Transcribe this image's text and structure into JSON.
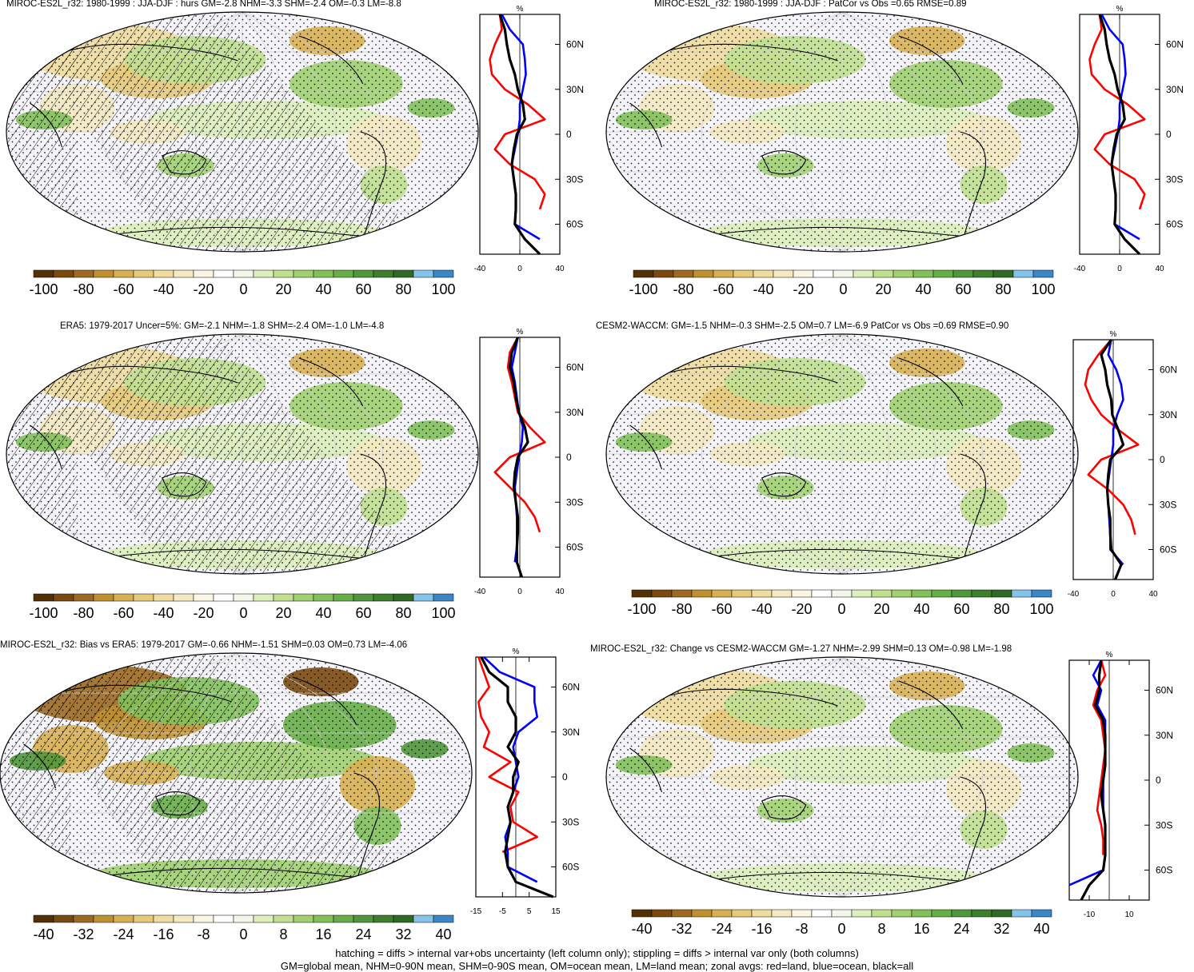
{
  "panels": [
    {
      "title": "MIROC-ES2L_r32: 1980-1999 : JJA-DJF : hurs GM=-2.8 NHM=-3.3 SHM=-2.4 OM=-0.3 LM=-8.8",
      "hatch": true,
      "intense": false,
      "cbar_labels": [
        "-100",
        "-80",
        "-60",
        "-40",
        "-20",
        "0",
        "20",
        "40",
        "60",
        "80",
        "100"
      ],
      "zonal_ticks": [
        "-40",
        "0",
        "40"
      ],
      "lat_labels": [
        "60N",
        "30N",
        "0",
        "30S",
        "60S"
      ]
    },
    {
      "title": "MIROC-ES2L_r32: 1980-1999 : JJA-DJF : PatCor vs Obs =0.65 RMSE=0.89",
      "hatch": false,
      "intense": false,
      "cbar_labels": [
        "-100",
        "-80",
        "-60",
        "-40",
        "-20",
        "0",
        "20",
        "40",
        "60",
        "80",
        "100"
      ],
      "zonal_ticks": [
        "-40",
        "0",
        "40"
      ],
      "lat_labels": [
        "60N",
        "30N",
        "0",
        "30S",
        "60S"
      ]
    },
    {
      "title": "ERA5: 1979-2017 Uncer=5%: GM=-2.1 NHM=-1.8 SHM=-2.4 OM=-1.0 LM=-4.8",
      "hatch": true,
      "intense": false,
      "cbar_labels": [
        "-100",
        "-80",
        "-60",
        "-40",
        "-20",
        "0",
        "20",
        "40",
        "60",
        "80",
        "100"
      ],
      "zonal_ticks": [
        "-40",
        "0",
        "40"
      ],
      "lat_labels": [
        "60N",
        "30N",
        "0",
        "30S",
        "60S"
      ]
    },
    {
      "title": "CESM2-WACCM: GM=-1.5 NHM=-0.3 SHM=-2.5 OM=0.7 LM=-6.9 PatCor vs Obs =0.69 RMSE=0.90",
      "hatch": false,
      "intense": false,
      "cbar_labels": [
        "-100",
        "-80",
        "-60",
        "-40",
        "-20",
        "0",
        "20",
        "40",
        "60",
        "80",
        "100"
      ],
      "zonal_ticks": [
        "-40",
        "0",
        "40"
      ],
      "lat_labels": [
        "60N",
        "30N",
        "0",
        "30S",
        "60S"
      ]
    },
    {
      "title": "MIROC-ES2L_r32: Bias vs ERA5: 1979-2017 GM=-0.66 NHM=-1.51 SHM=0.03 OM=0.73 LM=-4.06",
      "hatch": true,
      "intense": true,
      "cbar_labels": [
        "-40",
        "-32",
        "-24",
        "-16",
        "-8",
        "0",
        "8",
        "16",
        "24",
        "32",
        "40"
      ],
      "zonal_ticks": [
        "-15",
        "-5",
        "5",
        "15"
      ],
      "lat_labels": [
        "60N",
        "30N",
        "0",
        "30S",
        "60S"
      ]
    },
    {
      "title": "MIROC-ES2L_r32: Change vs CESM2-WACCM GM=-1.27 NHM=-2.99 SHM=0.13 OM=-0.98 LM=-1.98",
      "hatch": false,
      "intense": false,
      "cbar_labels": [
        "-40",
        "-32",
        "-24",
        "-16",
        "-8",
        "0",
        "8",
        "16",
        "24",
        "32",
        "40"
      ],
      "zonal_ticks": [
        "-10",
        "10"
      ],
      "lat_labels": [
        "60N",
        "30N",
        "0",
        "30S",
        "60S"
      ]
    }
  ],
  "zonal_axis_label": "%",
  "colorbar_colors": [
    "#543005",
    "#7a4a10",
    "#9d6a22",
    "#c09030",
    "#d8b052",
    "#e6c979",
    "#efdc9e",
    "#f5e9c2",
    "#fbf6e4",
    "#ffffff",
    "#f2f7e9",
    "#dceebb",
    "#c0e090",
    "#a0d070",
    "#82c05a",
    "#68ae48",
    "#50963a",
    "#3e7f2e",
    "#2f6a26",
    "#84c3ea",
    "#3d86c6"
  ],
  "series_colors": {
    "land": "#ff0000",
    "ocean": "#0000ff",
    "all": "#000000"
  },
  "footer": [
    "hatching = diffs > internal var+obs uncertainty (left column only); stippling = diffs > internal var only (both columns)",
    "GM=global mean, NHM=0-90N mean, SHM=0-90S mean, OM=ocean mean, LM=land mean; zonal avgs: red=land, blue=ocean, black=all"
  ],
  "chart_data": [
    {
      "type": "heatmap",
      "title": "MIROC-ES2L_r32: 1980-1999 : JJA-DJF : hurs GM=-2.8 NHM=-3.3 SHM=-2.4 OM=-0.3 LM=-8.8",
      "colorbar_range": [
        -100,
        100
      ],
      "zonal_x_range": [
        -40,
        40
      ],
      "zonal_lat": [
        80,
        70,
        60,
        50,
        40,
        30,
        20,
        10,
        0,
        -10,
        -20,
        -30,
        -40,
        -50,
        -60,
        -70,
        -80
      ],
      "land": [
        -20,
        -18,
        -25,
        -30,
        -28,
        -15,
        8,
        25,
        -15,
        -25,
        -10,
        15,
        25,
        20,
        null,
        -5,
        null
      ],
      "ocean": [
        -18,
        -10,
        3,
        5,
        6,
        3,
        0,
        0,
        -2,
        -5,
        -8,
        -6,
        -4,
        -4,
        -5,
        20,
        null
      ],
      "all": [
        -20,
        -15,
        -13,
        -10,
        -5,
        -2,
        3,
        5,
        -3,
        -6,
        -8,
        -6,
        -4,
        -4,
        -5,
        5,
        20
      ]
    },
    {
      "type": "heatmap",
      "title": "MIROC-ES2L_r32: 1980-1999 : JJA-DJF : PatCor vs Obs =0.65 RMSE=0.89",
      "colorbar_range": [
        -100,
        100
      ],
      "zonal_x_range": [
        -40,
        40
      ],
      "zonal_lat": [
        80,
        70,
        60,
        50,
        40,
        30,
        20,
        10,
        0,
        -10,
        -20,
        -30,
        -40,
        -50,
        -60,
        -70,
        -80
      ],
      "land": [
        -20,
        -18,
        -25,
        -30,
        -28,
        -15,
        8,
        25,
        -15,
        -25,
        -10,
        15,
        25,
        20,
        null,
        -5,
        null
      ],
      "ocean": [
        -18,
        -10,
        3,
        5,
        6,
        3,
        0,
        0,
        -2,
        -5,
        -8,
        -6,
        -4,
        -4,
        -5,
        20,
        null
      ],
      "all": [
        -20,
        -15,
        -13,
        -10,
        -5,
        -2,
        3,
        5,
        -3,
        -6,
        -8,
        -6,
        -4,
        -4,
        -5,
        5,
        20
      ]
    },
    {
      "type": "heatmap",
      "title": "ERA5: 1979-2017 Uncer=5%: GM=-2.1 NHM=-1.8 SHM=-2.4 OM=-1.0 LM=-4.8",
      "colorbar_range": [
        -100,
        100
      ],
      "zonal_x_range": [
        -40,
        40
      ],
      "zonal_lat": [
        80,
        70,
        60,
        50,
        40,
        30,
        20,
        10,
        0,
        -10,
        -20,
        -30,
        -40,
        -50,
        -60,
        -70,
        -80
      ],
      "land": [
        -2,
        -10,
        -12,
        -8,
        -5,
        -2,
        10,
        25,
        -10,
        -25,
        -10,
        5,
        15,
        20,
        null,
        -5,
        null
      ],
      "ocean": [
        -2,
        -5,
        -8,
        -5,
        -3,
        -1,
        3,
        2,
        -1,
        -3,
        -5,
        -4,
        -3,
        -3,
        -3,
        -5,
        null
      ],
      "all": [
        -2,
        -8,
        -10,
        -6,
        -4,
        -1,
        5,
        8,
        -2,
        -5,
        -6,
        -4,
        -2,
        -2,
        -3,
        -3,
        2
      ]
    },
    {
      "type": "heatmap",
      "title": "CESM2-WACCM: GM=-1.5 NHM=-0.3 SHM=-2.5 OM=0.7 LM=-6.9 PatCor vs Obs =0.69 RMSE=0.90",
      "colorbar_range": [
        -100,
        100
      ],
      "zonal_x_range": [
        -40,
        40
      ],
      "zonal_lat": [
        80,
        70,
        60,
        50,
        40,
        30,
        20,
        10,
        0,
        -10,
        -20,
        -30,
        -40,
        -50,
        -60,
        -70,
        -80
      ],
      "land": [
        -2,
        -15,
        -25,
        -28,
        -22,
        -12,
        5,
        25,
        -12,
        -25,
        -5,
        10,
        18,
        22,
        null,
        5,
        null
      ],
      "ocean": [
        -2,
        -5,
        3,
        8,
        10,
        4,
        0,
        0,
        -2,
        -4,
        -6,
        -5,
        -4,
        -3,
        -3,
        10,
        null
      ],
      "all": [
        -2,
        -12,
        -8,
        -6,
        -2,
        -1,
        5,
        10,
        -3,
        -5,
        -6,
        -5,
        -3,
        -3,
        -2,
        8,
        2
      ]
    },
    {
      "type": "heatmap",
      "title": "MIROC-ES2L_r32: Bias vs ERA5: 1979-2017 GM=-0.66 NHM=-1.51 SHM=0.03 OM=0.73 LM=-4.06",
      "colorbar_range": [
        -40,
        40
      ],
      "zonal_x_range": [
        -15,
        15
      ],
      "zonal_lat": [
        80,
        70,
        60,
        50,
        40,
        30,
        20,
        10,
        0,
        -10,
        -20,
        -30,
        -40,
        -50,
        -60,
        -70,
        -80
      ],
      "land": [
        -14,
        -12,
        -10,
        -14,
        -13,
        -10,
        -12,
        -2,
        -10,
        1,
        -2,
        -1,
        8,
        -5,
        null,
        -4,
        null
      ],
      "ocean": [
        -12,
        -6,
        7,
        7,
        8,
        1,
        -1,
        0,
        1,
        -1,
        -3,
        -2,
        -4,
        -3,
        -3,
        8,
        null
      ],
      "all": [
        -13,
        -10,
        -3,
        -3,
        0,
        0,
        -3,
        1,
        -1,
        -1,
        -3,
        -2,
        -3,
        -4,
        -3,
        0,
        14
      ]
    },
    {
      "type": "heatmap",
      "title": "MIROC-ES2L_r32: Change vs CESM2-WACCM GM=-1.27 NHM=-2.99 SHM=0.13 OM=-0.98 LM=-1.98",
      "colorbar_range": [
        -40,
        40
      ],
      "zonal_x_range": [
        -20,
        20
      ],
      "zonal_lat": [
        80,
        70,
        60,
        50,
        40,
        30,
        20,
        10,
        0,
        -10,
        -20,
        -30,
        -40,
        -50,
        -60,
        -70,
        -80
      ],
      "land": [
        -4,
        -2,
        -6,
        -8,
        -4,
        -3,
        -2,
        -3,
        -4,
        -5,
        -6,
        -4,
        -3,
        -3,
        null,
        -10,
        null
      ],
      "ocean": [
        -4,
        -8,
        -4,
        -6,
        -2,
        -2,
        -2,
        -2,
        -3,
        -3,
        -3,
        -2,
        -2,
        -2,
        -3,
        -20,
        null
      ],
      "all": [
        -4,
        -5,
        -5,
        -7,
        -3,
        -2,
        -2,
        -2,
        -3,
        -4,
        -3,
        -2,
        -2,
        -2,
        -3,
        -10,
        -14
      ]
    }
  ]
}
